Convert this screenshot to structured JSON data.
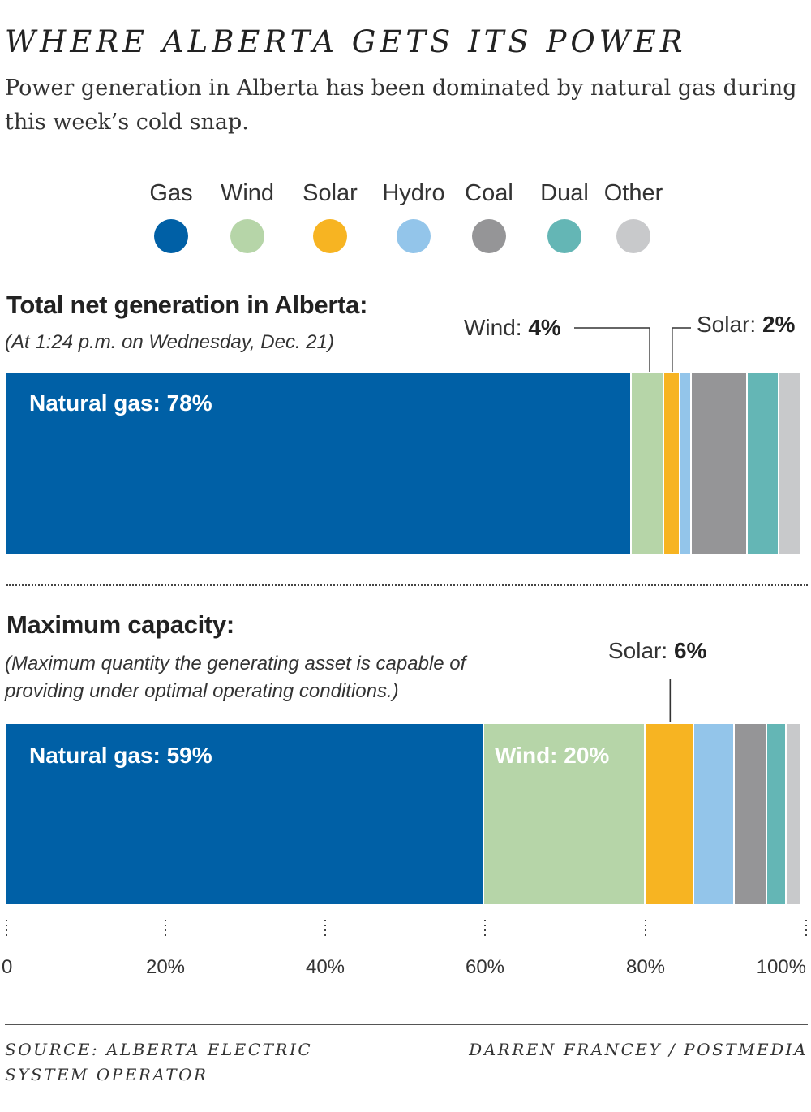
{
  "header": {
    "title": "WHERE ALBERTA GETS ITS POWER",
    "subtitle": "Power generation in Alberta has been dominated by natural gas during this week’s cold snap."
  },
  "legend": [
    {
      "label": "Gas",
      "color": "#0060a6"
    },
    {
      "label": "Wind",
      "color": "#b6d5a8"
    },
    {
      "label": "Solar",
      "color": "#f7b422"
    },
    {
      "label": "Hydro",
      "color": "#93c5ea"
    },
    {
      "label": "Coal",
      "color": "#959597"
    },
    {
      "label": "Dual",
      "color": "#64b6b5"
    },
    {
      "label": "Other",
      "color": "#c8c9cb"
    }
  ],
  "sections": {
    "generation": {
      "title": "Total net generation in Alberta:",
      "note": "(At 1:24 p.m. on Wednesday, Dec. 21)"
    },
    "capacity": {
      "title": "Maximum capacity:",
      "note": "(Maximum quantity the generating asset is capable of providing under optimal operating conditions.)"
    }
  },
  "chart_data": {
    "type": "bar",
    "orientation": "horizontal",
    "stacked": true,
    "unit": "%",
    "xlim": [
      0,
      100
    ],
    "xticks": [
      "0",
      "20%",
      "40%",
      "60%",
      "80%",
      "100%"
    ],
    "categories": [
      "Total net generation in Alberta",
      "Maximum capacity"
    ],
    "series": [
      {
        "name": "Gas",
        "values": [
          78,
          59
        ]
      },
      {
        "name": "Wind",
        "values": [
          4,
          20
        ]
      },
      {
        "name": "Solar",
        "values": [
          2,
          6
        ]
      },
      {
        "name": "Hydro",
        "values": [
          1.4,
          5
        ]
      },
      {
        "name": "Coal",
        "values": [
          7,
          4
        ]
      },
      {
        "name": "Dual",
        "values": [
          4,
          2.4
        ]
      },
      {
        "name": "Other",
        "values": [
          2.8,
          1.9
        ]
      }
    ],
    "labels": {
      "gen_gas": {
        "prefix": "Natural gas: ",
        "value": "78%"
      },
      "gen_wind": {
        "prefix": "Wind: ",
        "value": "4%"
      },
      "gen_solar": {
        "prefix": "Solar: ",
        "value": "2%"
      },
      "cap_gas": {
        "prefix": "Natural gas: ",
        "value": "59%"
      },
      "cap_wind": {
        "prefix": "Wind: ",
        "value": "20%"
      },
      "cap_solar": {
        "prefix": "Solar: ",
        "value": "6%"
      }
    }
  },
  "footer": {
    "source": "SOURCE: ALBERTA ELECTRIC SYSTEM OPERATOR",
    "credit": "DARREN FRANCEY / POSTMEDIA"
  }
}
